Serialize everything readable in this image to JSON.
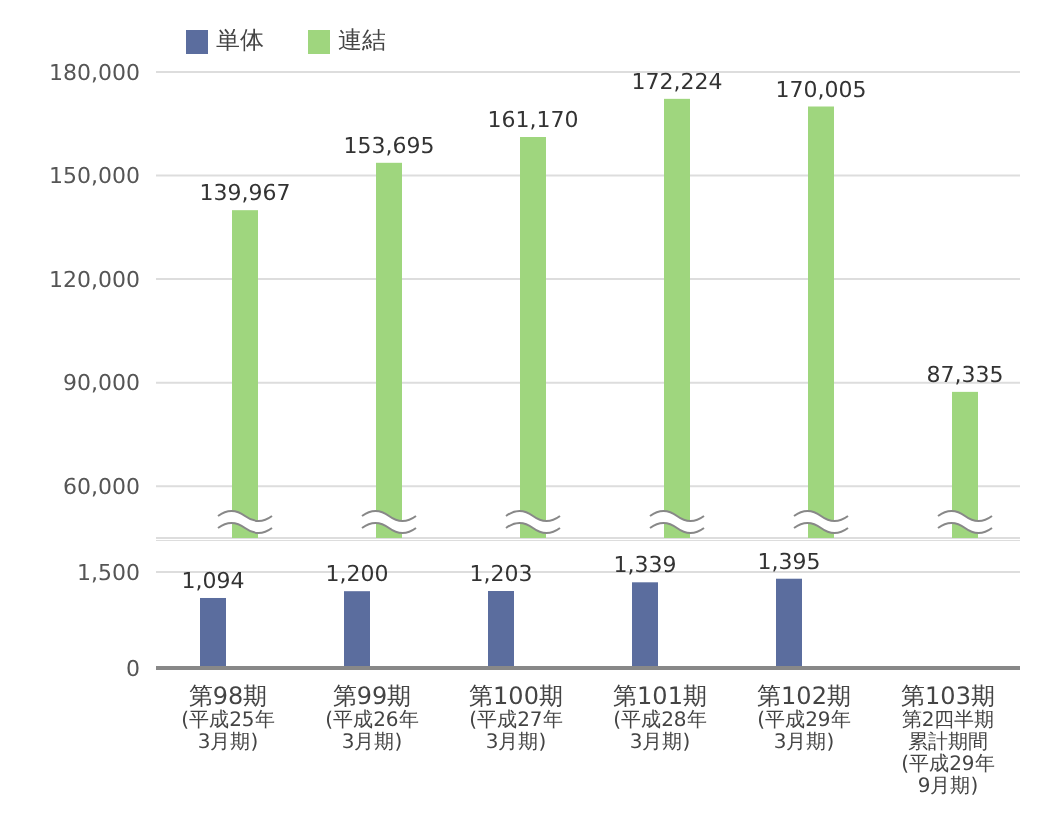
{
  "chart_data": [
    {
      "type": "bar",
      "categories": [
        null,
        null,
        null,
        null,
        null,
        null
      ],
      "series": [
        {
          "name": "連結",
          "color": "#9fd67e",
          "values": [
            139967,
            153695,
            161170,
            172224,
            170005,
            87335
          ],
          "value_labels": [
            "139,967",
            "153,695",
            "161,170",
            "172,224",
            "170,005",
            "87,335"
          ]
        }
      ],
      "ylim": [
        45000,
        180000
      ],
      "yticks": [
        {
          "value": 60000,
          "label": "60,000"
        },
        {
          "value": 90000,
          "label": "90,000"
        },
        {
          "value": 120000,
          "label": "120,000"
        },
        {
          "value": 150000,
          "label": "150,000"
        },
        {
          "value": 180000,
          "label": "180,000"
        }
      ],
      "grid": "y",
      "legend": "top left",
      "tick_labels": "y"
    },
    {
      "type": "bar",
      "categories": [
        "第98期(平成25年3月期)",
        "第99期(平成26年3月期)",
        "第100期(平成27年3月期)",
        "第101期(平成28年3月期)",
        "第102期(平成29年3月期)",
        "第103期第2四半期累計期間(平成29年9月期)"
      ],
      "series": [
        {
          "name": "単体",
          "color": "#5b6d9e",
          "values": [
            1094,
            1200,
            1203,
            1339,
            1395,
            null
          ],
          "value_labels": [
            "1,094",
            "1,200",
            "1,203",
            "1,339",
            "1,395",
            null
          ]
        }
      ],
      "ylim": [
        0,
        2000
      ],
      "yticks": [
        0,
        {
          "value": 1500,
          "label": "1,500"
        }
      ],
      "grid": "y"
    }
  ]
}
